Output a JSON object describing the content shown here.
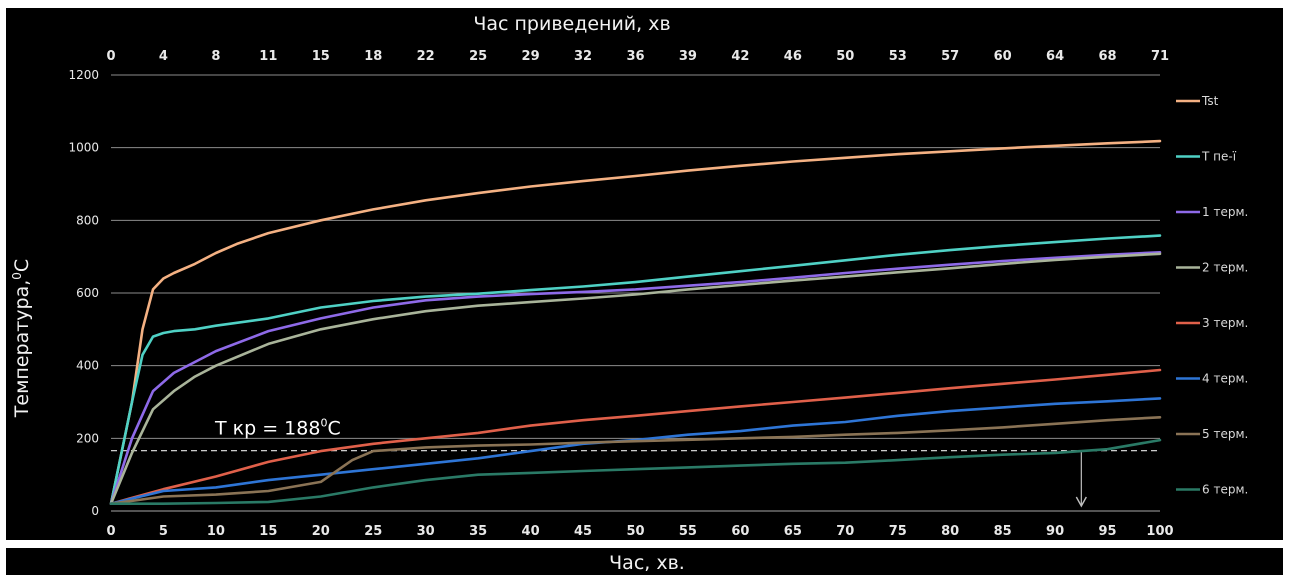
{
  "chart_data": {
    "type": "line",
    "title_top": "Час приведений, хв",
    "xlabel": "Час, хв.",
    "ylabel": "Температура,",
    "ylabel_sup": "0",
    "ylabel_unit": "C",
    "xlim": [
      0,
      100
    ],
    "ylim": [
      0,
      1200
    ],
    "x_ticks": [
      "0",
      "5",
      "10",
      "15",
      "20",
      "25",
      "30",
      "35",
      "40",
      "45",
      "50",
      "55",
      "60",
      "65",
      "70",
      "75",
      "80",
      "85",
      "90",
      "95",
      "100"
    ],
    "x_top_ticks": [
      "0",
      "4",
      "8",
      "11",
      "15",
      "18",
      "22",
      "25",
      "29",
      "32",
      "36",
      "39",
      "42",
      "46",
      "50",
      "53",
      "57",
      "60",
      "64",
      "68",
      "71"
    ],
    "y_ticks": [
      "0",
      "200",
      "400",
      "600",
      "800",
      "1000",
      "1200"
    ],
    "grid": true,
    "legend_position": "right",
    "annotation": {
      "text_prefix": "T кр = 188",
      "text_sup": "0",
      "text_suffix": "C",
      "value": 188,
      "arrow_x": 92.5
    },
    "series": [
      {
        "name": "Tst",
        "color": "#f4b183",
        "x": [
          0,
          2,
          3,
          4,
          5,
          6,
          8,
          10,
          12,
          15,
          20,
          25,
          30,
          35,
          40,
          45,
          50,
          55,
          60,
          65,
          70,
          75,
          80,
          85,
          90,
          95,
          100
        ],
        "values": [
          20,
          300,
          500,
          610,
          640,
          655,
          680,
          710,
          735,
          765,
          800,
          830,
          855,
          875,
          893,
          908,
          922,
          937,
          950,
          962,
          972,
          982,
          990,
          998,
          1005,
          1012,
          1018
        ]
      },
      {
        "name": "T пе-ї",
        "color": "#4fd1c5",
        "x": [
          0,
          2,
          3,
          4,
          5,
          6,
          8,
          10,
          15,
          20,
          25,
          30,
          35,
          40,
          45,
          50,
          55,
          60,
          65,
          70,
          75,
          80,
          85,
          90,
          95,
          100
        ],
        "values": [
          20,
          300,
          430,
          480,
          490,
          495,
          500,
          510,
          530,
          560,
          578,
          590,
          598,
          608,
          618,
          630,
          645,
          660,
          675,
          690,
          705,
          718,
          730,
          740,
          750,
          758
        ]
      },
      {
        "name": "1 терм.",
        "color": "#8e6ae8",
        "x": [
          0,
          2,
          4,
          6,
          8,
          10,
          15,
          20,
          25,
          30,
          35,
          40,
          45,
          50,
          55,
          60,
          65,
          70,
          75,
          80,
          85,
          90,
          95,
          100
        ],
        "values": [
          20,
          200,
          330,
          380,
          410,
          440,
          495,
          530,
          560,
          580,
          590,
          597,
          603,
          610,
          620,
          630,
          642,
          655,
          667,
          678,
          688,
          697,
          705,
          712
        ]
      },
      {
        "name": "2 терм.",
        "color": "#a9b49a",
        "x": [
          0,
          2,
          4,
          6,
          8,
          10,
          15,
          20,
          25,
          30,
          35,
          40,
          45,
          50,
          55,
          60,
          65,
          70,
          75,
          80,
          85,
          90,
          95,
          100
        ],
        "values": [
          20,
          160,
          280,
          330,
          370,
          400,
          460,
          500,
          528,
          550,
          565,
          575,
          585,
          596,
          610,
          622,
          634,
          645,
          657,
          668,
          680,
          691,
          700,
          708
        ]
      },
      {
        "name": "3 терм.",
        "color": "#e0604a",
        "x": [
          0,
          5,
          10,
          15,
          20,
          25,
          30,
          35,
          40,
          45,
          50,
          55,
          60,
          65,
          70,
          75,
          80,
          85,
          90,
          95,
          100
        ],
        "values": [
          20,
          60,
          95,
          135,
          165,
          185,
          200,
          215,
          235,
          250,
          262,
          275,
          288,
          300,
          312,
          325,
          338,
          350,
          362,
          375,
          388
        ]
      },
      {
        "name": "4 терм.",
        "color": "#2e75d6",
        "x": [
          0,
          5,
          10,
          15,
          20,
          25,
          30,
          35,
          40,
          45,
          50,
          55,
          60,
          65,
          70,
          75,
          80,
          85,
          90,
          95,
          100
        ],
        "values": [
          20,
          55,
          65,
          85,
          100,
          115,
          130,
          145,
          165,
          185,
          195,
          210,
          220,
          235,
          245,
          262,
          275,
          285,
          295,
          302,
          310
        ]
      },
      {
        "name": "5 терм.",
        "color": "#8a7355",
        "x": [
          0,
          5,
          10,
          15,
          20,
          23,
          25,
          30,
          35,
          40,
          45,
          50,
          55,
          60,
          65,
          70,
          75,
          80,
          85,
          90,
          95,
          100
        ],
        "values": [
          20,
          40,
          45,
          55,
          80,
          140,
          165,
          175,
          180,
          183,
          188,
          192,
          196,
          200,
          204,
          210,
          215,
          222,
          230,
          240,
          250,
          258
        ]
      },
      {
        "name": "6 терм.",
        "color": "#2a7a66",
        "x": [
          0,
          5,
          10,
          15,
          20,
          25,
          30,
          35,
          40,
          45,
          50,
          55,
          60,
          65,
          70,
          75,
          80,
          85,
          90,
          95,
          100
        ],
        "values": [
          20,
          20,
          22,
          25,
          40,
          65,
          85,
          100,
          105,
          110,
          115,
          120,
          125,
          130,
          133,
          140,
          148,
          155,
          160,
          170,
          195
        ]
      }
    ]
  }
}
